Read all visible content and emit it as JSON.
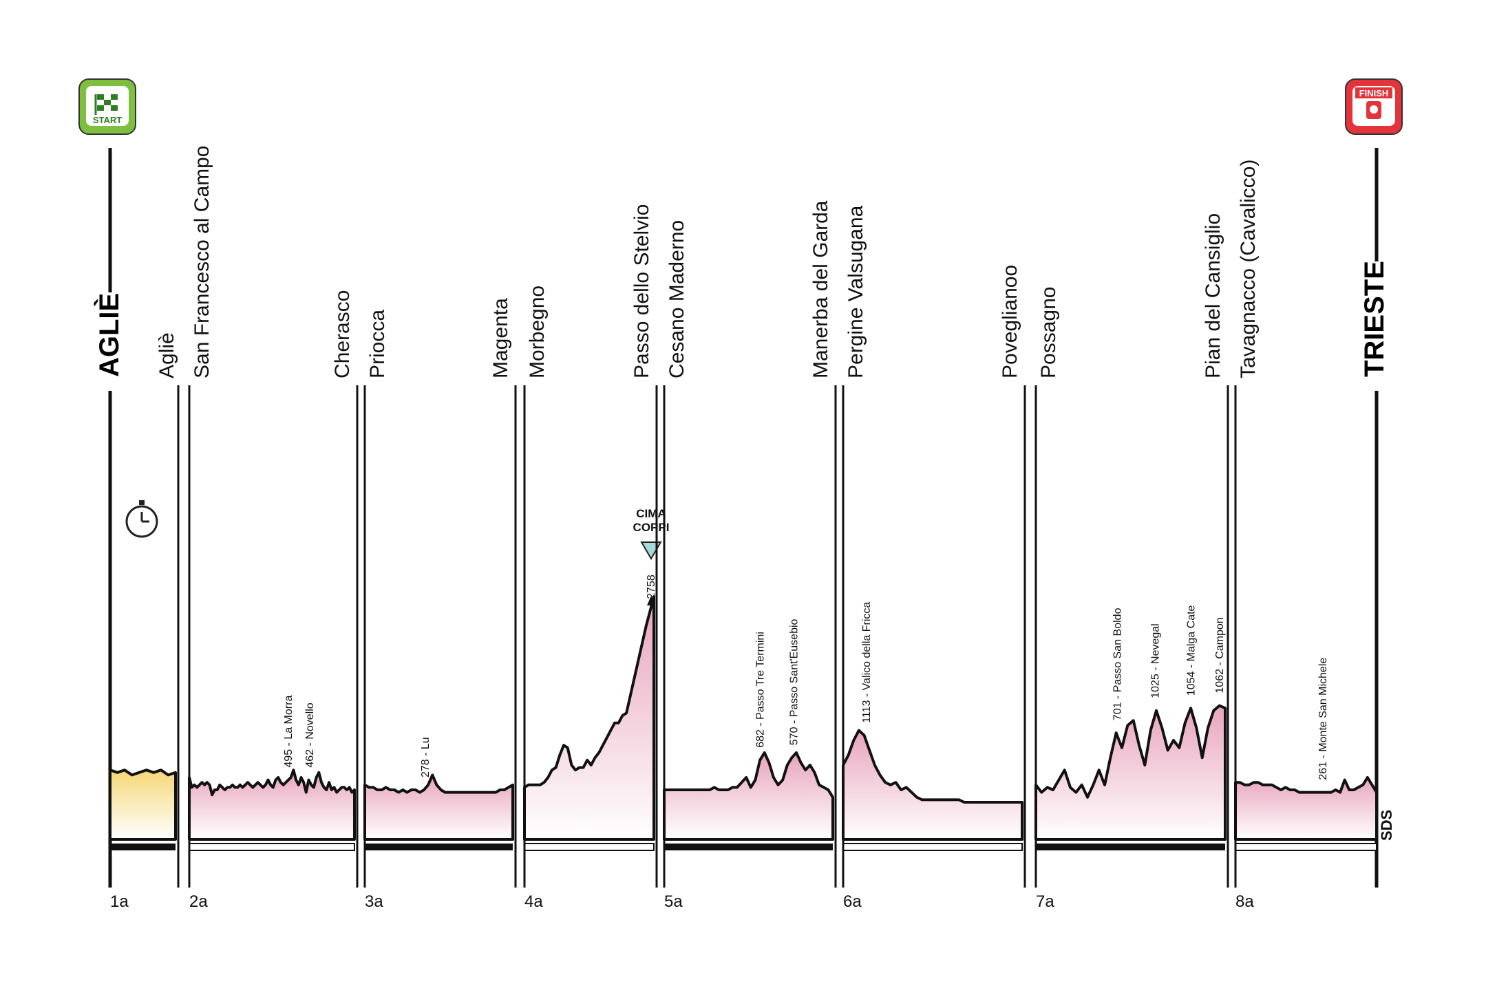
{
  "colors": {
    "profile_fill_top": "#e8a4bd",
    "profile_fill_bottom": "#ffffff",
    "itt_fill_top": "#f5d776",
    "itt_fill_bottom": "#ffffff",
    "start_badge": "#7fbf3f",
    "finish_badge": "#e3343c",
    "cima_coppi": "#a8d8d8",
    "line": "#111111"
  },
  "start": {
    "label": "START",
    "city": "AGLIÈ"
  },
  "finish": {
    "label": "FINISH",
    "city": "TRIESTE"
  },
  "cima_coppi": {
    "label_line1": "CIMA",
    "label_line2": "COPPI",
    "altitude": "2758"
  },
  "logo": "SDS",
  "chart_data": {
    "type": "area",
    "title": "",
    "stages": [
      {
        "label": "1a",
        "start": "Agliè",
        "time_trial": true,
        "bar": "dark",
        "profile": [
          0.28,
          0.27,
          0.28,
          0.26,
          0.27,
          0.28,
          0.27,
          0.28,
          0.26,
          0.27
        ],
        "climbs": []
      },
      {
        "label": "2a",
        "start": "San Francesco al Campo",
        "end": "Cherasco",
        "bar": "white",
        "profile": [
          0.25,
          0.21,
          0.22,
          0.21,
          0.22,
          0.23,
          0.22,
          0.23,
          0.22,
          0.18,
          0.2,
          0.2,
          0.22,
          0.21,
          0.2,
          0.21,
          0.21,
          0.22,
          0.21,
          0.21,
          0.22,
          0.21,
          0.22,
          0.23,
          0.22,
          0.21,
          0.22,
          0.23,
          0.22,
          0.21,
          0.22,
          0.24,
          0.22,
          0.21,
          0.24,
          0.25,
          0.23,
          0.22,
          0.23,
          0.24,
          0.25,
          0.28,
          0.24,
          0.22,
          0.25,
          0.23,
          0.19,
          0.24,
          0.22,
          0.21,
          0.25,
          0.27,
          0.23,
          0.21,
          0.2,
          0.23,
          0.2,
          0.21,
          0.19,
          0.2,
          0.21,
          0.21,
          0.2,
          0.21,
          0.19,
          0.2
        ],
        "climbs": [
          {
            "name": "495 - La Morra",
            "at": 0.6
          },
          {
            "name": "462 - Novello",
            "at": 0.73
          }
        ]
      },
      {
        "label": "3a",
        "start": "Priocca",
        "end": "Magenta",
        "bar": "dark",
        "profile": [
          0.22,
          0.21,
          0.21,
          0.2,
          0.2,
          0.21,
          0.2,
          0.2,
          0.19,
          0.2,
          0.19,
          0.2,
          0.2,
          0.19,
          0.2,
          0.22,
          0.26,
          0.22,
          0.2,
          0.19,
          0.19,
          0.19,
          0.19,
          0.19,
          0.19,
          0.19,
          0.19,
          0.19,
          0.19,
          0.19,
          0.19,
          0.19,
          0.2,
          0.2,
          0.21,
          0.22
        ],
        "climbs": [
          {
            "name": "278 - Lu",
            "at": 0.41
          }
        ]
      },
      {
        "label": "4a",
        "start": "Morbegno",
        "end": "Passo dello Stelvio",
        "bar": "white",
        "profile": [
          0.21,
          0.22,
          0.22,
          0.22,
          0.22,
          0.23,
          0.25,
          0.28,
          0.29,
          0.34,
          0.38,
          0.37,
          0.3,
          0.28,
          0.29,
          0.29,
          0.32,
          0.3,
          0.33,
          0.35,
          0.38,
          0.41,
          0.44,
          0.47,
          0.47,
          0.5,
          0.51,
          0.58,
          0.65,
          0.72,
          0.79,
          0.86,
          0.92,
          0.98
        ],
        "climbs": [
          {
            "name": "2758",
            "at": 0.98
          }
        ]
      },
      {
        "label": "5a",
        "start": "Cesano Maderno",
        "end": "Manerba del Garda",
        "bar": "dark",
        "profile": [
          0.2,
          0.2,
          0.2,
          0.2,
          0.2,
          0.2,
          0.2,
          0.2,
          0.2,
          0.2,
          0.2,
          0.21,
          0.2,
          0.2,
          0.2,
          0.21,
          0.21,
          0.23,
          0.25,
          0.21,
          0.24,
          0.32,
          0.35,
          0.31,
          0.25,
          0.22,
          0.24,
          0.3,
          0.33,
          0.35,
          0.31,
          0.28,
          0.3,
          0.27,
          0.22,
          0.21,
          0.2,
          0.17
        ],
        "climbs": [
          {
            "name": "682 - Passo Tre Termini",
            "at": 0.57
          },
          {
            "name": "570 - Passo Sant'Eusebio",
            "at": 0.77
          }
        ]
      },
      {
        "label": "6a",
        "start": "Pergine Valsugana",
        "end": "Poveglianoo",
        "bar": "white",
        "profile": [
          0.3,
          0.34,
          0.4,
          0.44,
          0.42,
          0.36,
          0.3,
          0.26,
          0.23,
          0.22,
          0.23,
          0.2,
          0.21,
          0.19,
          0.17,
          0.16,
          0.16,
          0.16,
          0.16,
          0.16,
          0.16,
          0.16,
          0.16,
          0.15,
          0.15,
          0.15,
          0.15,
          0.15,
          0.15,
          0.15,
          0.15,
          0.15,
          0.15,
          0.15,
          0.15
        ],
        "climbs": [
          {
            "name": "1113 - Valico della Fricca",
            "at": 0.13
          }
        ]
      },
      {
        "label": "7a",
        "start": "Possagno",
        "end": "Pian del Cansiglio",
        "bar": "dark",
        "profile": [
          0.22,
          0.19,
          0.21,
          0.2,
          0.24,
          0.28,
          0.21,
          0.19,
          0.22,
          0.17,
          0.22,
          0.28,
          0.22,
          0.33,
          0.43,
          0.37,
          0.46,
          0.48,
          0.38,
          0.3,
          0.44,
          0.52,
          0.45,
          0.36,
          0.4,
          0.37,
          0.47,
          0.53,
          0.45,
          0.33,
          0.45,
          0.52,
          0.54,
          0.53
        ],
        "climbs": [
          {
            "name": "701 - Passo San Boldo",
            "at": 0.43
          },
          {
            "name": "1025 - Nevegal",
            "at": 0.63
          },
          {
            "name": "1054 - Malga Cate",
            "at": 0.82
          },
          {
            "name": "1062 - Campon",
            "at": 0.97
          }
        ]
      },
      {
        "label": "8a",
        "start": "Tavagnacco (Cavalicco)",
        "end": "Trieste",
        "bar": "white",
        "profile": [
          0.23,
          0.23,
          0.22,
          0.22,
          0.23,
          0.23,
          0.22,
          0.22,
          0.22,
          0.21,
          0.2,
          0.21,
          0.2,
          0.2,
          0.19,
          0.19,
          0.19,
          0.19,
          0.19,
          0.19,
          0.19,
          0.19,
          0.2,
          0.19,
          0.24,
          0.2,
          0.2,
          0.21,
          0.22,
          0.25,
          0.22,
          0.19
        ],
        "climbs": [
          {
            "name": "261 - Monte San Michele",
            "at": 0.62
          }
        ]
      }
    ],
    "stage_ends": [
      "Agliè",
      "Cherasco",
      "Magenta",
      "Passo dello Stelvio",
      "Manerba del Garda",
      "Poveglianoo",
      "Pian del Cansiglio",
      "Trieste"
    ]
  }
}
